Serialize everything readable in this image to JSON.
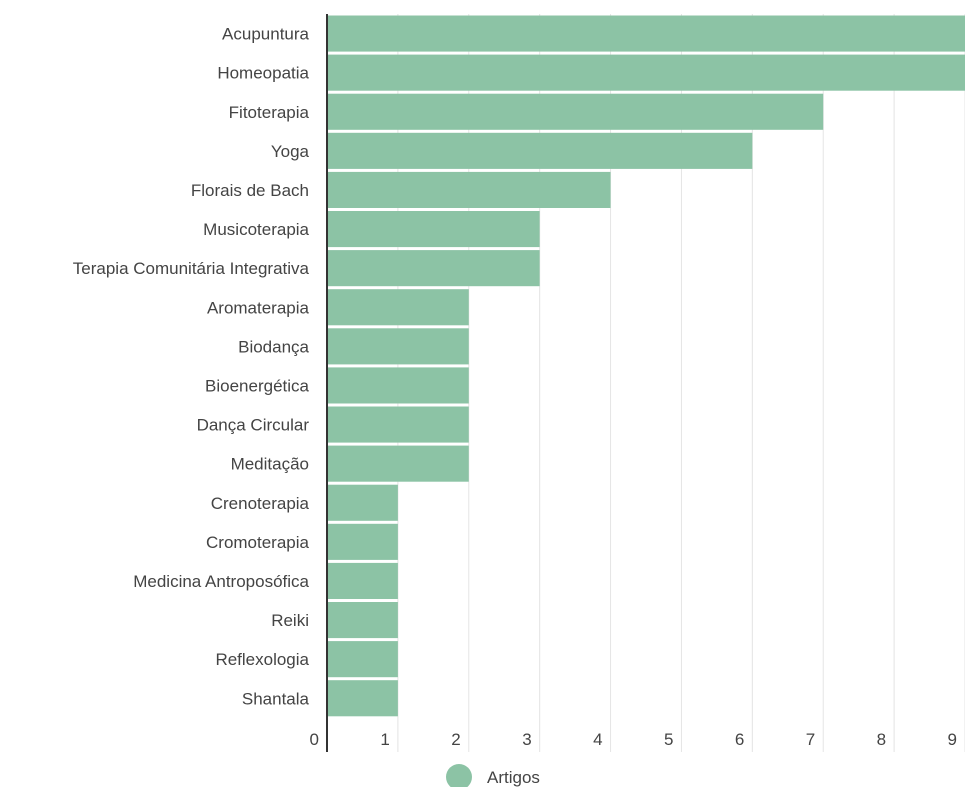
{
  "chart_data": {
    "type": "bar",
    "orientation": "horizontal",
    "categories": [
      "Acupuntura",
      "Homeopatia",
      "Fitoterapia",
      "Yoga",
      "Florais de Bach",
      "Musicoterapia",
      "Terapia Comunitária Integrativa",
      "Aromaterapia",
      "Biodança",
      "Bioenergética",
      "Dança Circular",
      "Meditação",
      "Crenoterapia",
      "Cromoterapia",
      "Medicina Antroposófica",
      "Reiki",
      "Reflexologia",
      "Shantala"
    ],
    "series": [
      {
        "name": "Artigos",
        "color": "#8cc3a5",
        "values": [
          9,
          9,
          7,
          6,
          4,
          3,
          3,
          2,
          2,
          2,
          2,
          2,
          1,
          1,
          1,
          1,
          1,
          1
        ]
      }
    ],
    "x_ticks": [
      "0",
      "1",
      "2",
      "3",
      "4",
      "5",
      "6",
      "7",
      "8",
      "9"
    ],
    "xlim": [
      0,
      9
    ],
    "grid": true,
    "legend_position": "bottom-center",
    "title": "",
    "xlabel": "",
    "ylabel": ""
  }
}
